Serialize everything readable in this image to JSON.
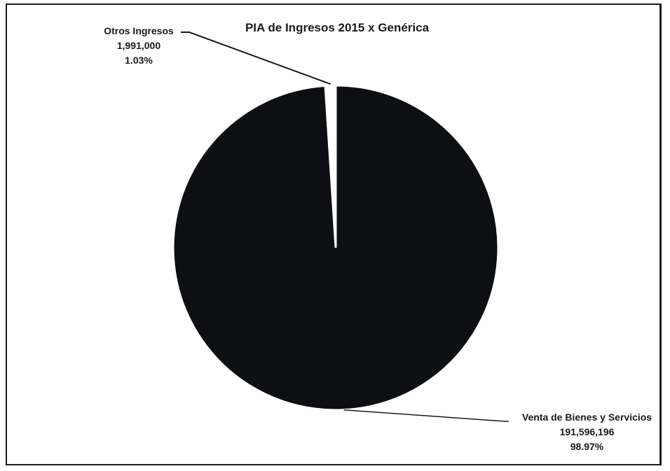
{
  "chart_data": {
    "type": "pie",
    "title": "PIA de Ingresos 2015 x Genérica",
    "slices": [
      {
        "label": "Otros Ingresos",
        "value_text": "1,991,000",
        "value": 1991000,
        "percent_text": "1.03%",
        "percent": 1.03,
        "color": "#ffffff"
      },
      {
        "label": "Venta de Bienes y Servicios",
        "value_text": "191,596,196",
        "value": 191596196,
        "percent_text": "98.97%",
        "percent": 98.97,
        "color": "#0d0f12"
      }
    ],
    "legend": "none",
    "data_labels": "outside with leader lines"
  }
}
